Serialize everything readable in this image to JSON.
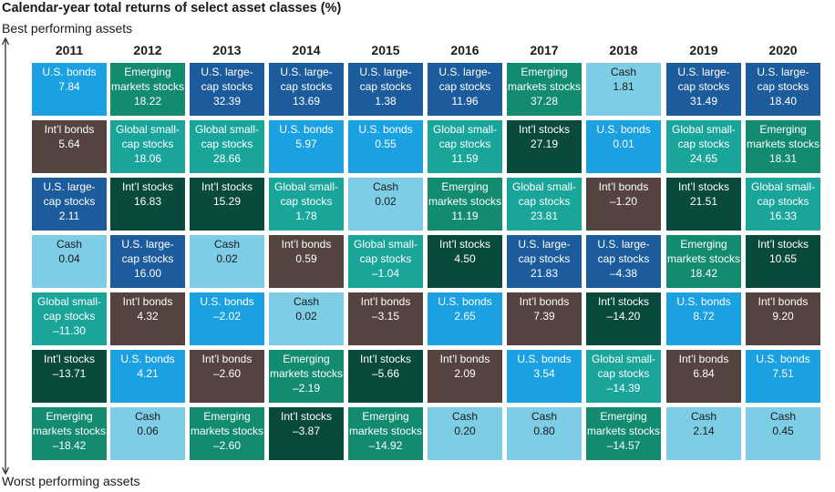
{
  "chart_data": {
    "type": "table",
    "title": "Calendar-year total returns of select asset classes (%)",
    "top_label": "Best performing assets",
    "bottom_label": "Worst performing assets",
    "years": [
      "2011",
      "2012",
      "2013",
      "2014",
      "2015",
      "2016",
      "2017",
      "2018",
      "2019",
      "2020"
    ],
    "colors": {
      "U.S. bonds": "#1ba1e2",
      "Int’l bonds": "#54433f",
      "U.S. large-cap stocks": "#1d5c9c",
      "Cash": "#7ecde6",
      "Global small-cap stocks": "#1aa59b",
      "Int’l stocks": "#0a4a3d",
      "Emerging markets stocks": "#138b70"
    },
    "columns": [
      {
        "year": "2011",
        "cells": [
          {
            "asset": "U.S. bonds",
            "label": "U.S. bonds",
            "value": "7.84"
          },
          {
            "asset": "Int’l bonds",
            "label": "Int’l bonds",
            "value": "5.64"
          },
          {
            "asset": "U.S. large-cap stocks",
            "label": "U.S. large-\ncap stocks",
            "value": "2.11"
          },
          {
            "asset": "Cash",
            "label": "Cash",
            "value": "0.04"
          },
          {
            "asset": "Global small-cap stocks",
            "label": "Global small-\ncap stocks",
            "value": "–11.30"
          },
          {
            "asset": "Int’l stocks",
            "label": "Int’l stocks",
            "value": "–13.71"
          },
          {
            "asset": "Emerging markets stocks",
            "label": "Emerging\nmarkets stocks",
            "value": "–18.42"
          }
        ]
      },
      {
        "year": "2012",
        "cells": [
          {
            "asset": "Emerging markets stocks",
            "label": "Emerging\nmarkets stocks",
            "value": "18.22"
          },
          {
            "asset": "Global small-cap stocks",
            "label": "Global small-\ncap stocks",
            "value": "18.06"
          },
          {
            "asset": "Int’l stocks",
            "label": "Int’l stocks",
            "value": "16.83"
          },
          {
            "asset": "U.S. large-cap stocks",
            "label": "U.S. large-\ncap stocks",
            "value": "16.00"
          },
          {
            "asset": "Int’l bonds",
            "label": "Int’l bonds",
            "value": "4.32"
          },
          {
            "asset": "U.S. bonds",
            "label": "U.S. bonds",
            "value": "4.21"
          },
          {
            "asset": "Cash",
            "label": "Cash",
            "value": "0.06"
          }
        ]
      },
      {
        "year": "2013",
        "cells": [
          {
            "asset": "U.S. large-cap stocks",
            "label": "U.S. large-\ncap stocks",
            "value": "32.39"
          },
          {
            "asset": "Global small-cap stocks",
            "label": "Global small-\ncap stocks",
            "value": "28.66"
          },
          {
            "asset": "Int’l stocks",
            "label": "Int’l stocks",
            "value": "15.29"
          },
          {
            "asset": "Cash",
            "label": "Cash",
            "value": "0.02"
          },
          {
            "asset": "U.S. bonds",
            "label": "U.S. bonds",
            "value": "–2.02"
          },
          {
            "asset": "Int’l bonds",
            "label": "Int’l bonds",
            "value": "–2.60"
          },
          {
            "asset": "Emerging markets stocks",
            "label": "Emerging\nmarkets stocks",
            "value": "–2.60"
          }
        ]
      },
      {
        "year": "2014",
        "cells": [
          {
            "asset": "U.S. large-cap stocks",
            "label": "U.S. large-\ncap stocks",
            "value": "13.69"
          },
          {
            "asset": "U.S. bonds",
            "label": "U.S. bonds",
            "value": "5.97"
          },
          {
            "asset": "Global small-cap stocks",
            "label": "Global small-\ncap stocks",
            "value": "1.78"
          },
          {
            "asset": "Int’l bonds",
            "label": "Int’l bonds",
            "value": "0.59"
          },
          {
            "asset": "Cash",
            "label": "Cash",
            "value": "0.02"
          },
          {
            "asset": "Emerging markets stocks",
            "label": "Emerging\nmarkets stocks",
            "value": "–2.19"
          },
          {
            "asset": "Int’l stocks",
            "label": "Int’l stocks",
            "value": "–3.87"
          }
        ]
      },
      {
        "year": "2015",
        "cells": [
          {
            "asset": "U.S. large-cap stocks",
            "label": "U.S. large-\ncap stocks",
            "value": "1.38"
          },
          {
            "asset": "U.S. bonds",
            "label": "U.S. bonds",
            "value": "0.55"
          },
          {
            "asset": "Cash",
            "label": "Cash",
            "value": "0.02"
          },
          {
            "asset": "Global small-cap stocks",
            "label": "Global small-\ncap stocks",
            "value": "–1.04"
          },
          {
            "asset": "Int’l bonds",
            "label": "Int’l bonds",
            "value": "–3.15"
          },
          {
            "asset": "Int’l stocks",
            "label": "Int’l stocks",
            "value": "–5.66"
          },
          {
            "asset": "Emerging markets stocks",
            "label": "Emerging\nmarkets stocks",
            "value": "–14.92"
          }
        ]
      },
      {
        "year": "2016",
        "cells": [
          {
            "asset": "U.S. large-cap stocks",
            "label": "U.S. large-\ncap stocks",
            "value": "11.96"
          },
          {
            "asset": "Global small-cap stocks",
            "label": "Global small-\ncap stocks",
            "value": "11.59"
          },
          {
            "asset": "Emerging markets stocks",
            "label": "Emerging\nmarkets stocks",
            "value": "11.19"
          },
          {
            "asset": "Int’l stocks",
            "label": "Int’l stocks",
            "value": "4.50"
          },
          {
            "asset": "U.S. bonds",
            "label": "U.S. bonds",
            "value": "2.65"
          },
          {
            "asset": "Int’l bonds",
            "label": "Int’l bonds",
            "value": "2.09"
          },
          {
            "asset": "Cash",
            "label": "Cash",
            "value": "0.20"
          }
        ]
      },
      {
        "year": "2017",
        "cells": [
          {
            "asset": "Emerging markets stocks",
            "label": "Emerging\nmarkets stocks",
            "value": "37.28"
          },
          {
            "asset": "Int’l stocks",
            "label": "Int’l stocks",
            "value": "27.19"
          },
          {
            "asset": "Global small-cap stocks",
            "label": "Global small-\ncap stocks",
            "value": "23.81"
          },
          {
            "asset": "U.S. large-cap stocks",
            "label": "U.S. large-\ncap stocks",
            "value": "21.83"
          },
          {
            "asset": "Int’l bonds",
            "label": "Int’l bonds",
            "value": "7.39"
          },
          {
            "asset": "U.S. bonds",
            "label": "U.S. bonds",
            "value": "3.54"
          },
          {
            "asset": "Cash",
            "label": "Cash",
            "value": "0.80"
          }
        ]
      },
      {
        "year": "2018",
        "cells": [
          {
            "asset": "Cash",
            "label": "Cash",
            "value": "1.81"
          },
          {
            "asset": "U.S. bonds",
            "label": "U.S. bonds",
            "value": "0.01"
          },
          {
            "asset": "Int’l bonds",
            "label": "Int’l bonds",
            "value": "–1.20"
          },
          {
            "asset": "U.S. large-cap stocks",
            "label": "U.S. large-\ncap stocks",
            "value": "–4.38"
          },
          {
            "asset": "Int’l stocks",
            "label": "Int’l stocks",
            "value": "–14.20"
          },
          {
            "asset": "Global small-cap stocks",
            "label": "Global small-\ncap stocks",
            "value": "–14.39"
          },
          {
            "asset": "Emerging markets stocks",
            "label": "Emerging\nmarkets stocks",
            "value": "–14.57"
          }
        ]
      },
      {
        "year": "2019",
        "cells": [
          {
            "asset": "U.S. large-cap stocks",
            "label": "U.S. large-\ncap stocks",
            "value": "31.49"
          },
          {
            "asset": "Global small-cap stocks",
            "label": "Global small-\ncap stocks",
            "value": "24.65"
          },
          {
            "asset": "Int’l stocks",
            "label": "Int’l stocks",
            "value": "21.51"
          },
          {
            "asset": "Emerging markets stocks",
            "label": "Emerging\nmarkets stocks",
            "value": "18.42"
          },
          {
            "asset": "U.S. bonds",
            "label": "U.S. bonds",
            "value": "8.72"
          },
          {
            "asset": "Int’l bonds",
            "label": "Int’l bonds",
            "value": "6.84"
          },
          {
            "asset": "Cash",
            "label": "Cash",
            "value": "2.14"
          }
        ]
      },
      {
        "year": "2020",
        "cells": [
          {
            "asset": "U.S. large-cap stocks",
            "label": "U.S. large-\ncap stocks",
            "value": "18.40"
          },
          {
            "asset": "Emerging markets stocks",
            "label": "Emerging\nmarkets stocks",
            "value": "18.31"
          },
          {
            "asset": "Global small-cap stocks",
            "label": "Global small-\ncap stocks",
            "value": "16.33"
          },
          {
            "asset": "Int’l stocks",
            "label": "Int’l stocks",
            "value": "10.65"
          },
          {
            "asset": "Int’l bonds",
            "label": "Int’l bonds",
            "value": "9.20"
          },
          {
            "asset": "U.S. bonds",
            "label": "U.S. bonds",
            "value": "7.51"
          },
          {
            "asset": "Cash",
            "label": "Cash",
            "value": "0.45"
          }
        ]
      }
    ]
  }
}
